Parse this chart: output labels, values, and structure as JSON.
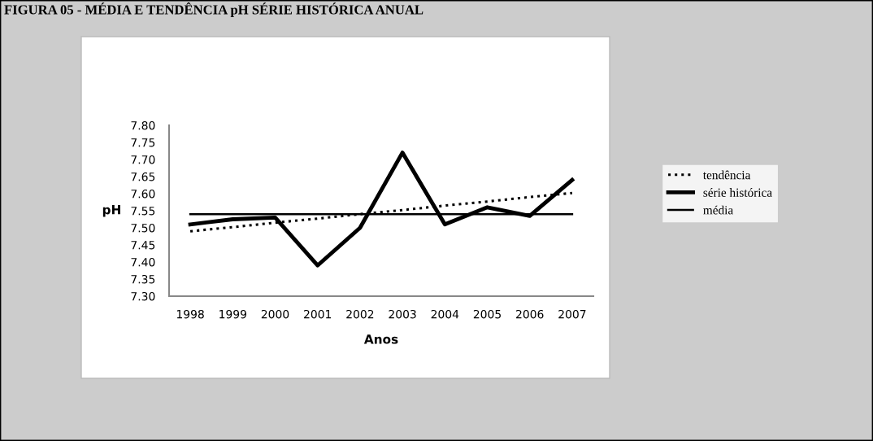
{
  "chart_data": {
    "type": "line",
    "title": "FIGURA 05 - MÉDIA E TENDÊNCIA pH SÉRIE HISTÓRICA ANUAL",
    "xlabel": "Anos",
    "ylabel": "pH",
    "categories": [
      "1998",
      "1999",
      "2000",
      "2001",
      "2002",
      "2003",
      "2004",
      "2005",
      "2006",
      "2007"
    ],
    "series": [
      {
        "name": "tendência",
        "color": "#000000",
        "line_style": "dotted",
        "values": [
          7.49,
          7.502,
          7.515,
          7.527,
          7.54,
          7.552,
          7.565,
          7.577,
          7.59,
          7.602
        ]
      },
      {
        "name": "série histórica",
        "color": "#000000",
        "line_style": "solid",
        "values": [
          7.51,
          7.525,
          7.53,
          7.39,
          7.5,
          7.72,
          7.51,
          7.56,
          7.535,
          7.64
        ]
      },
      {
        "name": "média",
        "color": "#000000",
        "line_style": "solid",
        "values": [
          7.54,
          7.54,
          7.54,
          7.54,
          7.54,
          7.54,
          7.54,
          7.54,
          7.54,
          7.54
        ]
      }
    ],
    "ylim": [
      7.3,
      7.8
    ],
    "yticks": [
      {
        "value": 7.3,
        "label": "7.30"
      },
      {
        "value": 7.35,
        "label": "7.35"
      },
      {
        "value": 7.4,
        "label": "7.40"
      },
      {
        "value": 7.45,
        "label": "7.45"
      },
      {
        "value": 7.5,
        "label": "7.50"
      },
      {
        "value": 7.55,
        "label": "7.55"
      },
      {
        "value": 7.6,
        "label": "7.60"
      },
      {
        "value": 7.65,
        "label": "7.65"
      },
      {
        "value": 7.7,
        "label": "7.70"
      },
      {
        "value": 7.75,
        "label": "7.75"
      },
      {
        "value": 7.8,
        "label": "7.80"
      }
    ],
    "grid": false,
    "legend": "right",
    "marker": "none"
  }
}
